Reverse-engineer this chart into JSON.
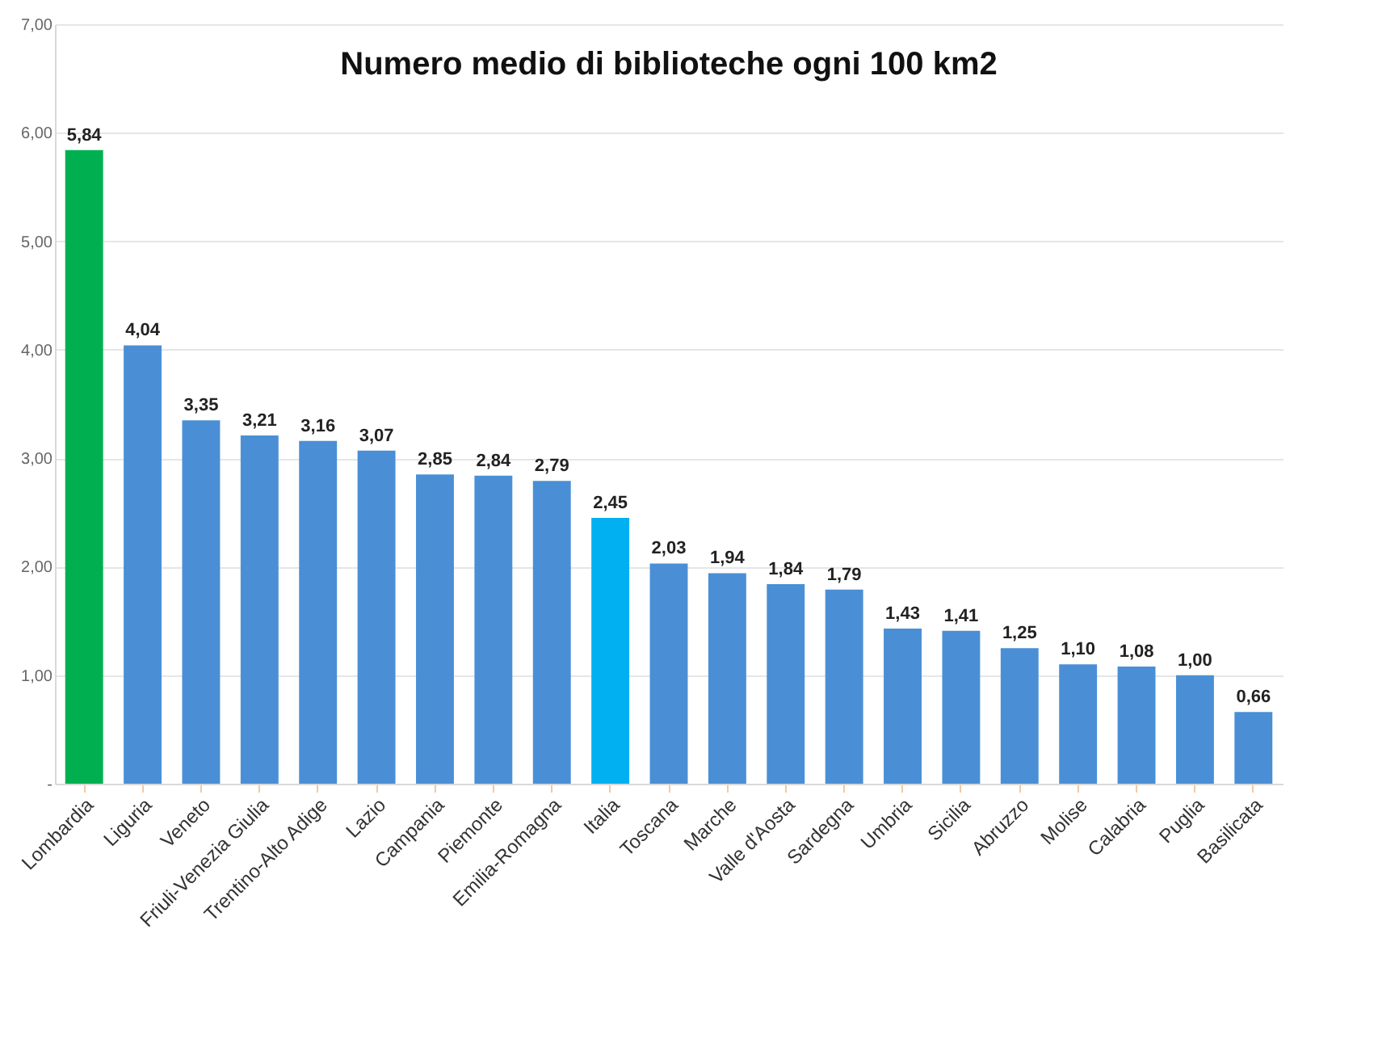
{
  "chart_data": {
    "type": "bar",
    "title": "Numero medio di biblioteche ogni 100 km2",
    "categories": [
      "Lombardia",
      "Liguria",
      "Veneto",
      "Friuli-Venezia Giulia",
      "Trentino-Alto Adige",
      "Lazio",
      "Campania",
      "Piemonte",
      "Emilia-Romagna",
      "Italia",
      "Toscana",
      "Marche",
      "Valle d'Aosta",
      "Sardegna",
      "Umbria",
      "Sicilia",
      "Abruzzo",
      "Molise",
      "Calabria",
      "Puglia",
      "Basilicata"
    ],
    "values": [
      5.84,
      4.04,
      3.35,
      3.21,
      3.16,
      3.07,
      2.85,
      2.84,
      2.79,
      2.45,
      2.03,
      1.94,
      1.84,
      1.79,
      1.43,
      1.41,
      1.25,
      1.1,
      1.08,
      1.0,
      0.66
    ],
    "value_labels": [
      "5,84",
      "4,04",
      "3,35",
      "3,21",
      "3,16",
      "3,07",
      "2,85",
      "2,84",
      "2,79",
      "2,45",
      "2,03",
      "1,94",
      "1,84",
      "1,79",
      "1,43",
      "1,41",
      "1,25",
      "1,10",
      "1,08",
      "1,00",
      "0,66"
    ],
    "colors": [
      "#00b050",
      "#4a8fd6",
      "#4a8fd6",
      "#4a8fd6",
      "#4a8fd6",
      "#4a8fd6",
      "#4a8fd6",
      "#4a8fd6",
      "#4a8fd6",
      "#00b0f0",
      "#4a8fd6",
      "#4a8fd6",
      "#4a8fd6",
      "#4a8fd6",
      "#4a8fd6",
      "#4a8fd6",
      "#4a8fd6",
      "#4a8fd6",
      "#4a8fd6",
      "#4a8fd6",
      "#4a8fd6"
    ],
    "ylim": [
      0,
      7
    ],
    "yticks": [
      {
        "value": 0,
        "label": "-"
      },
      {
        "value": 1,
        "label": "1,00"
      },
      {
        "value": 2,
        "label": "2,00"
      },
      {
        "value": 3,
        "label": "3,00"
      },
      {
        "value": 4,
        "label": "4,00"
      },
      {
        "value": 5,
        "label": "5,00"
      },
      {
        "value": 6,
        "label": "6,00"
      },
      {
        "value": 7,
        "label": "7,00"
      }
    ],
    "grid": "y"
  }
}
